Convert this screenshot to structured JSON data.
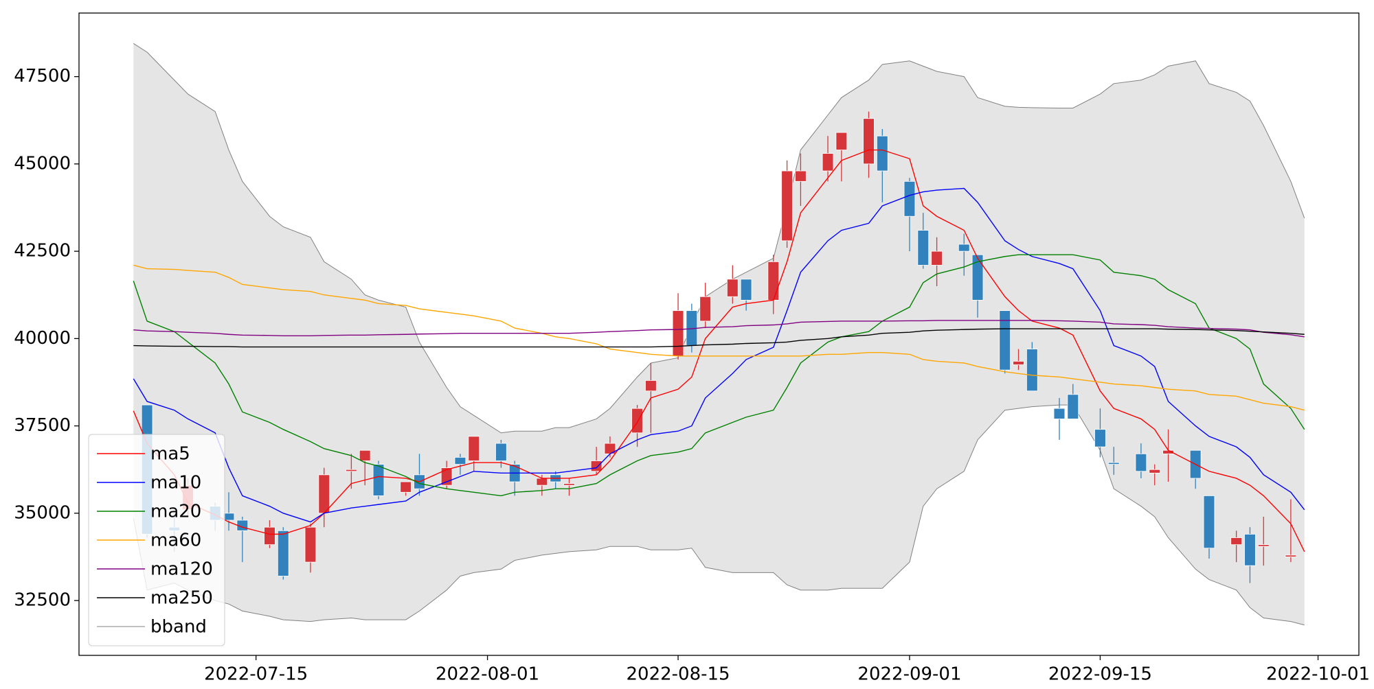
{
  "chart_data": {
    "type": "candlestick",
    "x": [
      "2022-07-06",
      "2022-07-07",
      "2022-07-09",
      "2022-07-10",
      "2022-07-12",
      "2022-07-13",
      "2022-07-14",
      "2022-07-16",
      "2022-07-17",
      "2022-07-19",
      "2022-07-20",
      "2022-07-22",
      "2022-07-23",
      "2022-07-24",
      "2022-07-26",
      "2022-07-27",
      "2022-07-29",
      "2022-07-30",
      "2022-07-31",
      "2022-08-02",
      "2022-08-03",
      "2022-08-05",
      "2022-08-06",
      "2022-08-07",
      "2022-08-09",
      "2022-08-10",
      "2022-08-12",
      "2022-08-13",
      "2022-08-15",
      "2022-08-16",
      "2022-08-17",
      "2022-08-19",
      "2022-08-20",
      "2022-08-22",
      "2022-08-23",
      "2022-08-24",
      "2022-08-26",
      "2022-08-27",
      "2022-08-29",
      "2022-08-30",
      "2022-09-01",
      "2022-09-02",
      "2022-09-03",
      "2022-09-05",
      "2022-09-06",
      "2022-09-08",
      "2022-09-09",
      "2022-09-10",
      "2022-09-12",
      "2022-09-13",
      "2022-09-15",
      "2022-09-16",
      "2022-09-18",
      "2022-09-19",
      "2022-09-20",
      "2022-09-22",
      "2022-09-23",
      "2022-09-25",
      "2022-09-26",
      "2022-09-27",
      "2022-09-29",
      "2022-09-30"
    ],
    "open": [
      null,
      38100,
      34600,
      35100,
      35200,
      35000,
      34800,
      34100,
      34500,
      33600,
      35000,
      36200,
      36500,
      36400,
      35600,
      36100,
      35800,
      36600,
      36500,
      37000,
      36400,
      35800,
      36100,
      35800,
      36200,
      36700,
      37300,
      38500,
      39500,
      40800,
      40500,
      41200,
      41700,
      41100,
      42800,
      44500,
      44800,
      45400,
      45000,
      45800,
      44500,
      43100,
      42100,
      42700,
      42400,
      40800,
      39250,
      39700,
      38000,
      38400,
      37400,
      36450,
      36700,
      36150,
      36700,
      36800,
      35500,
      34100,
      34400,
      34050,
      33750,
      null
    ],
    "high": [
      null,
      38100,
      35000,
      36000,
      35300,
      35600,
      34900,
      34800,
      34600,
      34700,
      36300,
      36700,
      36800,
      36500,
      35900,
      36700,
      36500,
      36700,
      37200,
      37100,
      36500,
      36100,
      36200,
      36000,
      36900,
      37200,
      38100,
      39300,
      41300,
      41000,
      41600,
      42100,
      41700,
      42400,
      45100,
      45300,
      45800,
      45900,
      46500,
      46000,
      44600,
      43600,
      42900,
      43000,
      42400,
      40800,
      39700,
      39900,
      38300,
      38700,
      38000,
      36900,
      37000,
      36400,
      37400,
      36800,
      35500,
      34500,
      34600,
      34900,
      35400,
      null
    ],
    "low": [
      null,
      34300,
      33900,
      34900,
      34500,
      34500,
      33600,
      34000,
      33100,
      33300,
      34600,
      35700,
      35800,
      35400,
      35500,
      35500,
      35700,
      36100,
      36200,
      36300,
      35500,
      35500,
      35700,
      35500,
      36100,
      36600,
      36900,
      37300,
      39400,
      39600,
      40300,
      41000,
      40800,
      40700,
      42600,
      43800,
      44500,
      44500,
      44600,
      43900,
      42500,
      42000,
      41500,
      41800,
      40600,
      39000,
      39100,
      38500,
      37100,
      37700,
      36600,
      36100,
      36000,
      35800,
      35900,
      35700,
      33700,
      33600,
      33000,
      33500,
      33600,
      null
    ],
    "close": [
      null,
      34400,
      34500,
      35800,
      34800,
      34800,
      34500,
      34600,
      33200,
      34600,
      36100,
      36250,
      36800,
      35500,
      35900,
      35700,
      36300,
      36400,
      37200,
      36500,
      35900,
      36000,
      35900,
      35850,
      36500,
      37000,
      38000,
      38800,
      40800,
      39800,
      41200,
      41700,
      41100,
      42200,
      44800,
      44800,
      45300,
      45900,
      46300,
      44800,
      43500,
      42100,
      42500,
      42500,
      41100,
      39100,
      39350,
      38500,
      37700,
      37700,
      36900,
      36400,
      36200,
      36250,
      36800,
      36000,
      34000,
      34300,
      33500,
      34100,
      33800,
      null
    ],
    "up_color": "#d6363a",
    "down_color": "#3182bd",
    "series": [
      {
        "name": "ma5",
        "color": "#ff0000",
        "values": [
          37930,
          37000,
          36100,
          35300,
          34950,
          34750,
          34600,
          34400,
          34400,
          34650,
          35000,
          35850,
          35950,
          36050,
          36000,
          35900,
          36250,
          36350,
          36450,
          36450,
          36350,
          36000,
          36000,
          36000,
          36100,
          36500,
          37600,
          38300,
          38550,
          38900,
          40000,
          40900,
          41000,
          41100,
          42200,
          43600,
          44600,
          45100,
          45400,
          45400,
          45150,
          43800,
          43500,
          43100,
          42300,
          41200,
          40800,
          40500,
          40300,
          40100,
          38500,
          38000,
          37700,
          37400,
          36800,
          36400,
          36200,
          36000,
          35800,
          35500,
          34700,
          33900
        ]
      },
      {
        "name": "ma10",
        "color": "#0000ff",
        "values": [
          38850,
          38200,
          37950,
          37700,
          37300,
          36300,
          35500,
          35200,
          35000,
          34750,
          35000,
          35150,
          35200,
          35250,
          35350,
          35600,
          35900,
          36050,
          36200,
          36150,
          36150,
          36150,
          36150,
          36200,
          36300,
          36700,
          37100,
          37250,
          37350,
          37500,
          38300,
          39000,
          39400,
          39750,
          40800,
          41900,
          42800,
          43100,
          43300,
          43800,
          44100,
          44200,
          44250,
          44300,
          43900,
          42800,
          42550,
          42350,
          42150,
          42000,
          40800,
          39800,
          39500,
          39200,
          38200,
          37500,
          37200,
          36900,
          36600,
          36100,
          35600,
          35100
        ]
      },
      {
        "name": "ma20",
        "color": "#008000",
        "values": [
          41650,
          40500,
          40200,
          39900,
          39300,
          38700,
          37900,
          37600,
          37400,
          37050,
          36850,
          36650,
          36450,
          36350,
          36050,
          35850,
          35700,
          35650,
          35600,
          35500,
          35600,
          35650,
          35700,
          35700,
          35850,
          36100,
          36500,
          36650,
          36750,
          36850,
          37300,
          37600,
          37750,
          37950,
          38600,
          39300,
          39900,
          40050,
          40200,
          40500,
          40900,
          41600,
          41850,
          42050,
          42200,
          42350,
          42400,
          42400,
          42400,
          42400,
          42250,
          41900,
          41800,
          41700,
          41400,
          41000,
          40300,
          40000,
          39700,
          38700,
          38000,
          37400
        ]
      },
      {
        "name": "ma60",
        "color": "#ffa500",
        "values": [
          42100,
          42000,
          41980,
          41950,
          41900,
          41750,
          41550,
          41450,
          41400,
          41350,
          41250,
          41150,
          41100,
          41000,
          40950,
          40850,
          40750,
          40700,
          40650,
          40500,
          40300,
          40150,
          40050,
          40000,
          39850,
          39700,
          39600,
          39550,
          39500,
          39500,
          39500,
          39500,
          39500,
          39500,
          39500,
          39500,
          39550,
          39550,
          39600,
          39600,
          39550,
          39400,
          39350,
          39300,
          39200,
          39050,
          39000,
          38950,
          38900,
          38850,
          38750,
          38700,
          38650,
          38600,
          38550,
          38500,
          38400,
          38350,
          38250,
          38150,
          38050,
          37950
        ]
      },
      {
        "name": "ma120",
        "color": "#800080",
        "values": [
          40250,
          40220,
          40200,
          40180,
          40150,
          40120,
          40100,
          40090,
          40080,
          40080,
          40090,
          40100,
          40100,
          40110,
          40120,
          40130,
          40140,
          40150,
          40150,
          40150,
          40150,
          40150,
          40150,
          40150,
          40180,
          40200,
          40230,
          40250,
          40260,
          40280,
          40320,
          40340,
          40370,
          40390,
          40420,
          40470,
          40490,
          40500,
          40500,
          40500,
          40510,
          40510,
          40520,
          40520,
          40520,
          40520,
          40520,
          40520,
          40510,
          40500,
          40470,
          40420,
          40400,
          40380,
          40340,
          40300,
          40290,
          40270,
          40250,
          40180,
          40110,
          40050
        ]
      },
      {
        "name": "ma250",
        "color": "#000000",
        "values": [
          39800,
          39790,
          39780,
          39780,
          39770,
          39770,
          39760,
          39760,
          39760,
          39760,
          39760,
          39760,
          39760,
          39760,
          39760,
          39760,
          39760,
          39760,
          39760,
          39760,
          39760,
          39760,
          39760,
          39760,
          39760,
          39760,
          39760,
          39760,
          39780,
          39800,
          39820,
          39840,
          39860,
          39880,
          39900,
          39950,
          40000,
          40050,
          40100,
          40150,
          40180,
          40220,
          40240,
          40260,
          40270,
          40280,
          40280,
          40280,
          40280,
          40280,
          40280,
          40280,
          40280,
          40280,
          40270,
          40260,
          40250,
          40230,
          40210,
          40190,
          40150,
          40120
        ]
      }
    ],
    "band": {
      "name": "bband",
      "color": "#808080",
      "fill": "#e5e5e5",
      "upper": [
        48450,
        48200,
        47400,
        47000,
        46500,
        45400,
        44500,
        43500,
        43200,
        42900,
        42200,
        41700,
        41250,
        41100,
        40900,
        39900,
        38600,
        38050,
        37800,
        37300,
        37350,
        37350,
        37450,
        37450,
        37700,
        38000,
        38900,
        39300,
        39450,
        40400,
        41200,
        41700,
        41900,
        42300,
        43800,
        45400,
        46400,
        46900,
        47400,
        47850,
        47950,
        47800,
        47650,
        47500,
        46900,
        46650,
        46620,
        46610,
        46600,
        46600,
        47000,
        47300,
        47400,
        47550,
        47800,
        47950,
        47300,
        47050,
        46800,
        46100,
        44500,
        43450
      ],
      "lower": [
        34850,
        32800,
        33000,
        32800,
        32500,
        32400,
        32200,
        32050,
        31950,
        31900,
        31950,
        32000,
        31950,
        31950,
        31950,
        32200,
        32800,
        33200,
        33300,
        33400,
        33650,
        33800,
        33850,
        33900,
        33950,
        34050,
        34050,
        33950,
        33950,
        34000,
        33450,
        33300,
        33300,
        33300,
        32950,
        32800,
        32800,
        32850,
        32850,
        32850,
        33600,
        35200,
        35700,
        36200,
        37100,
        37950,
        38000,
        38050,
        38100,
        38100,
        36800,
        35700,
        35200,
        34900,
        34300,
        33400,
        33100,
        32800,
        32300,
        32000,
        31900,
        31800
      ]
    },
    "xlim": [
      "2022-07-02",
      "2022-10-04"
    ],
    "xticks": [
      "2022-07-15",
      "2022-08-01",
      "2022-08-15",
      "2022-09-01",
      "2022-09-15",
      "2022-10-01"
    ],
    "ylim": [
      30930,
      49320
    ],
    "yticks": [
      32500,
      35000,
      37500,
      40000,
      42500,
      45000,
      47500
    ],
    "legend": "lower left"
  }
}
